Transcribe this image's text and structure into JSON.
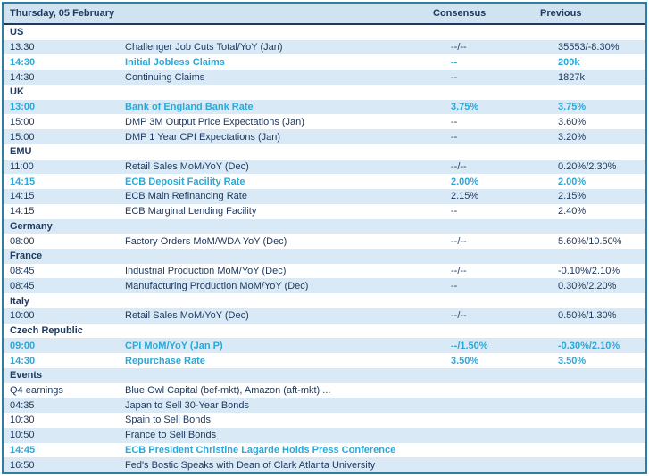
{
  "header": {
    "title": "Thursday, 05 February",
    "consensus_label": "Consensus",
    "previous_label": "Previous"
  },
  "colors": {
    "navy_text": "#1f3a60",
    "highlight_cyan": "#29a9da",
    "row_shade": "#d9eaf6",
    "header_bg": "#cfe3f1",
    "border_teal": "#2e7f9f"
  },
  "sections": [
    {
      "name": "US",
      "rows": [
        {
          "time": "13:30",
          "event": "Challenger Job Cuts Total/YoY (Jan)",
          "consensus": "--/--",
          "previous": "35553/-8.30%",
          "highlight": false
        },
        {
          "time": "14:30",
          "event": "Initial Jobless Claims",
          "consensus": "--",
          "previous": "209k",
          "highlight": true
        },
        {
          "time": "14:30",
          "event": "Continuing Claims",
          "consensus": "--",
          "previous": "1827k",
          "highlight": false
        }
      ]
    },
    {
      "name": "UK",
      "rows": [
        {
          "time": "13:00",
          "event": "Bank of England Bank Rate",
          "consensus": "3.75%",
          "previous": "3.75%",
          "highlight": true
        },
        {
          "time": "15:00",
          "event": "DMP 3M Output Price Expectations (Jan)",
          "consensus": "--",
          "previous": "3.60%",
          "highlight": false
        },
        {
          "time": "15:00",
          "event": "DMP 1 Year CPI Expectations (Jan)",
          "consensus": "--",
          "previous": "3.20%",
          "highlight": false
        }
      ]
    },
    {
      "name": "EMU",
      "rows": [
        {
          "time": "11:00",
          "event": "Retail Sales MoM/YoY (Dec)",
          "consensus": "--/--",
          "previous": "0.20%/2.30%",
          "highlight": false
        },
        {
          "time": "14:15",
          "event": "ECB Deposit Facility Rate",
          "consensus": "2.00%",
          "previous": "2.00%",
          "highlight": true
        },
        {
          "time": "14:15",
          "event": "ECB Main Refinancing Rate",
          "consensus": "2.15%",
          "previous": "2.15%",
          "highlight": false
        },
        {
          "time": "14:15",
          "event": "ECB Marginal Lending Facility",
          "consensus": "--",
          "previous": "2.40%",
          "highlight": false
        }
      ]
    },
    {
      "name": "Germany",
      "rows": [
        {
          "time": "08:00",
          "event": "Factory Orders MoM/WDA YoY (Dec)",
          "consensus": "--/--",
          "previous": "5.60%/10.50%",
          "highlight": false
        }
      ]
    },
    {
      "name": "France",
      "rows": [
        {
          "time": "08:45",
          "event": "Industrial Production MoM/YoY (Dec)",
          "consensus": "--/--",
          "previous": "-0.10%/2.10%",
          "highlight": false
        },
        {
          "time": "08:45",
          "event": "Manufacturing Production MoM/YoY (Dec)",
          "consensus": "--",
          "previous": "0.30%/2.20%",
          "highlight": false
        }
      ]
    },
    {
      "name": "Italy",
      "rows": [
        {
          "time": "10:00",
          "event": "Retail Sales MoM/YoY (Dec)",
          "consensus": "--/--",
          "previous": "0.50%/1.30%",
          "highlight": false
        }
      ]
    },
    {
      "name": "Czech Republic",
      "rows": [
        {
          "time": "09:00",
          "event": "CPI MoM/YoY (Jan P)",
          "consensus": "--/1.50%",
          "previous": "-0.30%/2.10%",
          "highlight": true
        },
        {
          "time": "14:30",
          "event": "Repurchase Rate",
          "consensus": "3.50%",
          "previous": "3.50%",
          "highlight": true
        }
      ]
    },
    {
      "name": "Events",
      "rows": [
        {
          "time": "Q4 earnings",
          "event": "Blue Owl Capital (bef-mkt), Amazon (aft-mkt) ...",
          "consensus": "",
          "previous": "",
          "highlight": false
        },
        {
          "time": "04:35",
          "event": "Japan to Sell 30-Year Bonds",
          "consensus": "",
          "previous": "",
          "highlight": false
        },
        {
          "time": "10:30",
          "event": "Spain to Sell Bonds",
          "consensus": "",
          "previous": "",
          "highlight": false
        },
        {
          "time": "10:50",
          "event": "France to Sell Bonds",
          "consensus": "",
          "previous": "",
          "highlight": false
        },
        {
          "time": "14:45",
          "event": "ECB President Christine Lagarde Holds Press Conference",
          "consensus": "",
          "previous": "",
          "highlight": true
        },
        {
          "time": "16:50",
          "event": "Fed's Bostic Speaks with Dean of Clark Atlanta University",
          "consensus": "",
          "previous": "",
          "highlight": false
        }
      ]
    }
  ]
}
